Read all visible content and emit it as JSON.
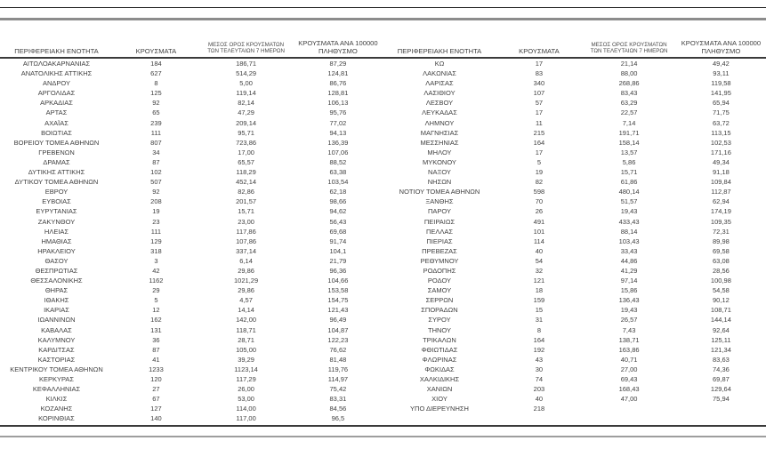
{
  "colors": {
    "text": "#404040",
    "rule_dark": "#262626",
    "rule_gray": "#8c8c8c"
  },
  "table": {
    "columns": {
      "region": "ΠΕΡΙΦΕΡΕΙΑΚΗ ΕΝΟΤΗΤΑ",
      "cases": "ΚΡΟΥΣΜΑΤΑ",
      "avg7_line1": "ΜΕΣΟΣ ΟΡΟΣ ΚΡΟΥΣΜΑΤΩΝ",
      "avg7_line2": "ΤΩΝ ΤΕΛΕΥΤΑΙΩΝ 7 ΗΜΕΡΩΝ",
      "per100k_line1": "ΚΡΟΥΣΜΑΤΑ ΑΝΑ 100000",
      "per100k_line2": "ΠΛΗΘΥΣΜΟ"
    },
    "left_rows": [
      [
        "ΑΙΤΩΛΟΑΚΑΡΝΑΝΙΑΣ",
        "184",
        "186,71",
        "87,29"
      ],
      [
        "ΑΝΑΤΟΛΙΚΗΣ ΑΤΤΙΚΗΣ",
        "627",
        "514,29",
        "124,81"
      ],
      [
        "ΑΝΔΡΟΥ",
        "8",
        "5,00",
        "86,76"
      ],
      [
        "ΑΡΓΟΛΙΔΑΣ",
        "125",
        "119,14",
        "128,81"
      ],
      [
        "ΑΡΚΑΔΙΑΣ",
        "92",
        "82,14",
        "106,13"
      ],
      [
        "ΑΡΤΑΣ",
        "65",
        "47,29",
        "95,76"
      ],
      [
        "ΑΧΑΪΑΣ",
        "239",
        "209,14",
        "77,02"
      ],
      [
        "ΒΟΙΩΤΙΑΣ",
        "111",
        "95,71",
        "94,13"
      ],
      [
        "ΒΟΡΕΙΟΥ ΤΟΜΕΑ ΑΘΗΝΩΝ",
        "807",
        "723,86",
        "136,39"
      ],
      [
        "ΓΡΕΒΕΝΩΝ",
        "34",
        "17,00",
        "107,06"
      ],
      [
        "ΔΡΑΜΑΣ",
        "87",
        "65,57",
        "88,52"
      ],
      [
        "ΔΥΤΙΚΗΣ ΑΤΤΙΚΗΣ",
        "102",
        "118,29",
        "63,38"
      ],
      [
        "ΔΥΤΙΚΟΥ ΤΟΜΕΑ ΑΘΗΝΩΝ",
        "507",
        "452,14",
        "103,54"
      ],
      [
        "ΕΒΡΟΥ",
        "92",
        "82,86",
        "62,18"
      ],
      [
        "ΕΥΒΟΙΑΣ",
        "208",
        "201,57",
        "98,66"
      ],
      [
        "ΕΥΡΥΤΑΝΙΑΣ",
        "19",
        "15,71",
        "94,62"
      ],
      [
        "ΖΑΚΥΝΘΟΥ",
        "23",
        "23,00",
        "56,43"
      ],
      [
        "ΗΛΕΙΑΣ",
        "111",
        "117,86",
        "69,68"
      ],
      [
        "ΗΜΑΘΙΑΣ",
        "129",
        "107,86",
        "91,74"
      ],
      [
        "ΗΡΑΚΛΕΙΟΥ",
        "318",
        "337,14",
        "104,1"
      ],
      [
        "ΘΑΣΟΥ",
        "3",
        "6,14",
        "21,79"
      ],
      [
        "ΘΕΣΠΡΩΤΙΑΣ",
        "42",
        "29,86",
        "96,36"
      ],
      [
        "ΘΕΣΣΑΛΟΝΙΚΗΣ",
        "1162",
        "1021,29",
        "104,66"
      ],
      [
        "ΘΗΡΑΣ",
        "29",
        "29,86",
        "153,58"
      ],
      [
        "ΙΘΑΚΗΣ",
        "5",
        "4,57",
        "154,75"
      ],
      [
        "ΙΚΑΡΙΑΣ",
        "12",
        "14,14",
        "121,43"
      ],
      [
        "ΙΩΑΝΝΙΝΩΝ",
        "162",
        "142,00",
        "96,49"
      ],
      [
        "ΚΑΒΑΛΑΣ",
        "131",
        "118,71",
        "104,87"
      ],
      [
        "ΚΑΛΥΜΝΟΥ",
        "36",
        "28,71",
        "122,23"
      ],
      [
        "ΚΑΡΔΙΤΣΑΣ",
        "87",
        "105,00",
        "76,62"
      ],
      [
        "ΚΑΣΤΟΡΙΑΣ",
        "41",
        "39,29",
        "81,48"
      ],
      [
        "ΚΕΝΤΡΙΚΟΥ ΤΟΜΕΑ ΑΘΗΝΩΝ",
        "1233",
        "1123,14",
        "119,76"
      ],
      [
        "ΚΕΡΚΥΡΑΣ",
        "120",
        "117,29",
        "114,97"
      ],
      [
        "ΚΕΦΑΛΛΗΝΙΑΣ",
        "27",
        "26,00",
        "75,42"
      ],
      [
        "ΚΙΛΚΙΣ",
        "67",
        "53,00",
        "83,31"
      ],
      [
        "ΚΟΖΑΝΗΣ",
        "127",
        "114,00",
        "84,56"
      ],
      [
        "ΚΟΡΙΝΘΙΑΣ",
        "140",
        "117,00",
        "96,5"
      ]
    ],
    "right_rows": [
      [
        "ΚΩ",
        "17",
        "21,14",
        "49,42"
      ],
      [
        "ΛΑΚΩΝΙΑΣ",
        "83",
        "88,00",
        "93,11"
      ],
      [
        "ΛΑΡΙΣΑΣ",
        "340",
        "268,86",
        "119,58"
      ],
      [
        "ΛΑΣΙΘΙΟΥ",
        "107",
        "83,43",
        "141,95"
      ],
      [
        "ΛΕΣΒΟΥ",
        "57",
        "63,29",
        "65,94"
      ],
      [
        "ΛΕΥΚΑΔΑΣ",
        "17",
        "22,57",
        "71,75"
      ],
      [
        "ΛΗΜΝΟΥ",
        "11",
        "7,14",
        "63,72"
      ],
      [
        "ΜΑΓΝΗΣΙΑΣ",
        "215",
        "191,71",
        "113,15"
      ],
      [
        "ΜΕΣΣΗΝΙΑΣ",
        "164",
        "158,14",
        "102,53"
      ],
      [
        "ΜΗΛΟΥ",
        "17",
        "13,57",
        "171,16"
      ],
      [
        "ΜΥΚΟΝΟΥ",
        "5",
        "5,86",
        "49,34"
      ],
      [
        "ΝΑΞΟΥ",
        "19",
        "15,71",
        "91,18"
      ],
      [
        "ΝΗΣΩΝ",
        "82",
        "61,86",
        "109,84"
      ],
      [
        "ΝΟΤΙΟΥ ΤΟΜΕΑ ΑΘΗΝΩΝ",
        "598",
        "480,14",
        "112,87"
      ],
      [
        "ΞΑΝΘΗΣ",
        "70",
        "51,57",
        "62,94"
      ],
      [
        "ΠΑΡΟΥ",
        "26",
        "19,43",
        "174,19"
      ],
      [
        "ΠΕΙΡΑΙΩΣ",
        "491",
        "433,43",
        "109,35"
      ],
      [
        "ΠΕΛΛΑΣ",
        "101",
        "88,14",
        "72,31"
      ],
      [
        "ΠΙΕΡΙΑΣ",
        "114",
        "103,43",
        "89,98"
      ],
      [
        "ΠΡΕΒΕΖΑΣ",
        "40",
        "33,43",
        "69,58"
      ],
      [
        "ΡΕΘΥΜΝΟΥ",
        "54",
        "44,86",
        "63,08"
      ],
      [
        "ΡΟΔΟΠΗΣ",
        "32",
        "41,29",
        "28,56"
      ],
      [
        "ΡΟΔΟΥ",
        "121",
        "97,14",
        "100,98"
      ],
      [
        "ΣΑΜΟΥ",
        "18",
        "15,86",
        "54,58"
      ],
      [
        "ΣΕΡΡΩΝ",
        "159",
        "136,43",
        "90,12"
      ],
      [
        "ΣΠΟΡΑΔΩΝ",
        "15",
        "19,43",
        "108,71"
      ],
      [
        "ΣΥΡΟΥ",
        "31",
        "26,57",
        "144,14"
      ],
      [
        "ΤΗΝΟΥ",
        "8",
        "7,43",
        "92,64"
      ],
      [
        "ΤΡΙΚΑΛΩΝ",
        "164",
        "138,71",
        "125,11"
      ],
      [
        "ΦΘΙΩΤΙΔΑΣ",
        "192",
        "163,86",
        "121,34"
      ],
      [
        "ΦΛΩΡΙΝΑΣ",
        "43",
        "40,71",
        "83,63"
      ],
      [
        "ΦΩΚΙΔΑΣ",
        "30",
        "27,00",
        "74,36"
      ],
      [
        "ΧΑΛΚΙΔΙΚΗΣ",
        "74",
        "69,43",
        "69,87"
      ],
      [
        "ΧΑΝΙΩΝ",
        "203",
        "168,43",
        "129,64"
      ],
      [
        "ΧΙΟΥ",
        "40",
        "47,00",
        "75,94"
      ],
      [
        "ΥΠΟ ΔΙΕΡΕΥΝΗΣΗ",
        "218",
        "",
        ""
      ]
    ]
  }
}
